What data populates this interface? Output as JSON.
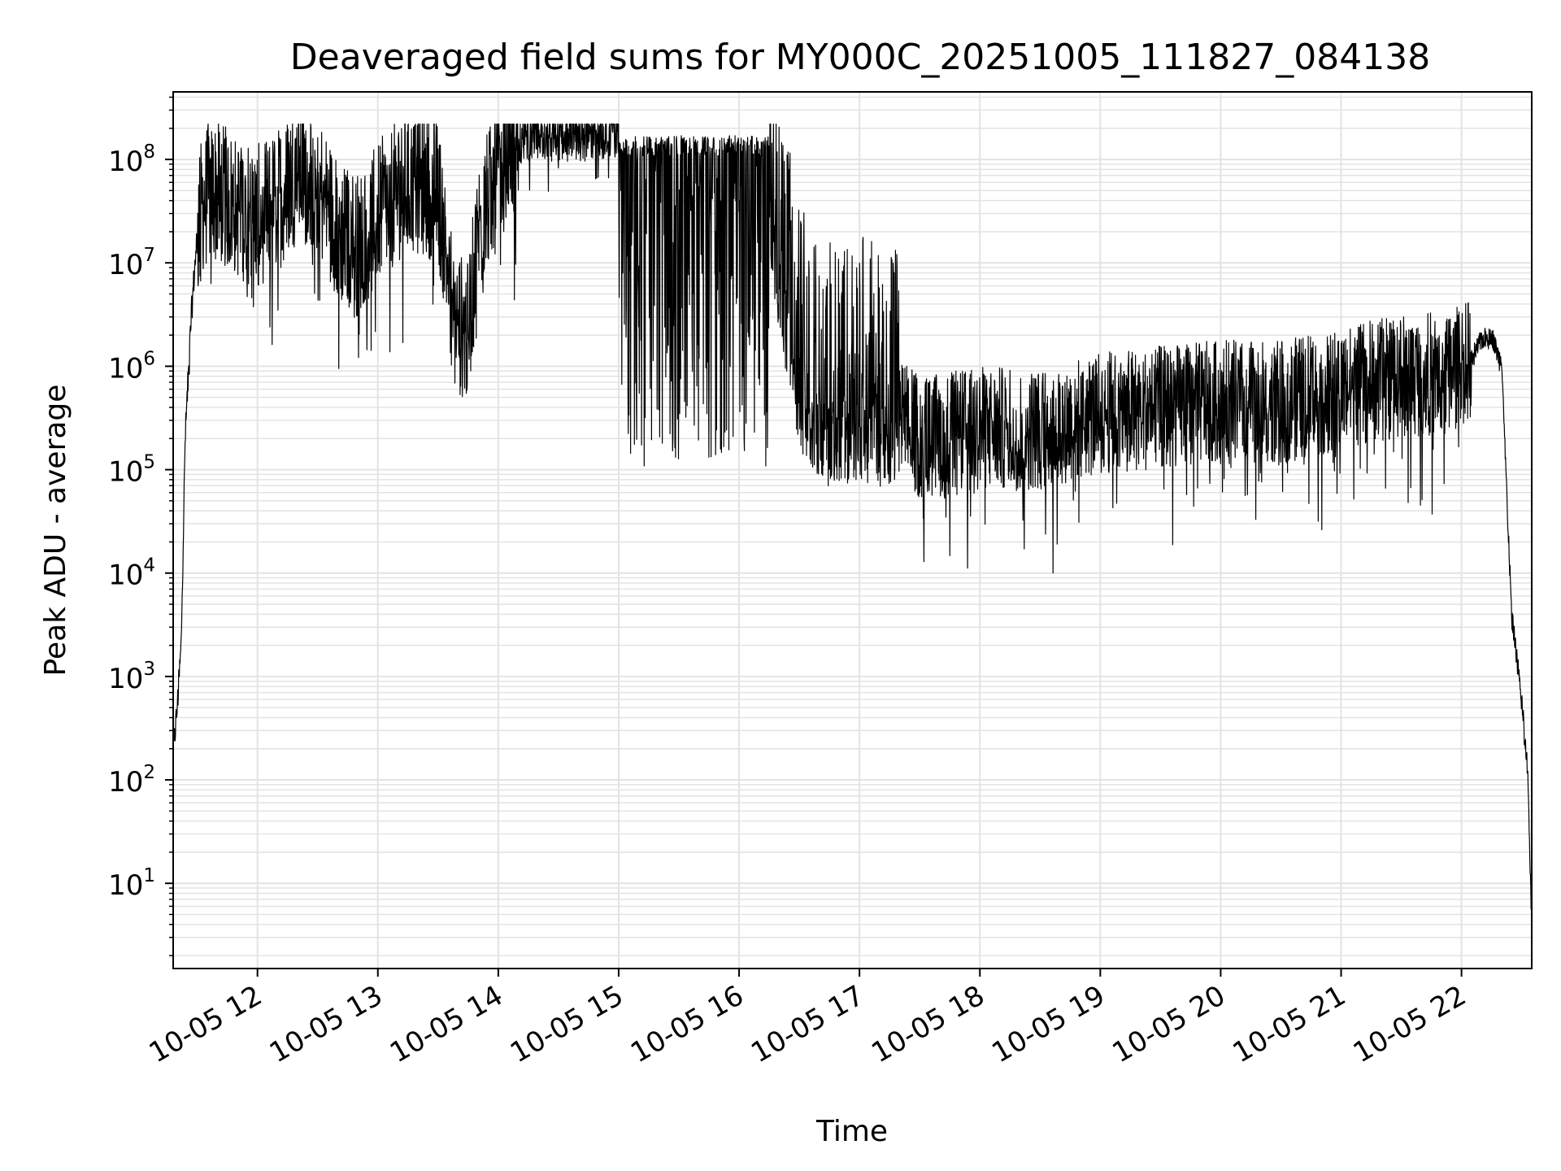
{
  "chart_data": {
    "type": "line",
    "title": "Deaveraged field sums for MY000C_20251005_111827_084138",
    "xlabel": "Time",
    "ylabel": "Peak ADU - average",
    "y_scale": "log",
    "ylim": [
      1.5,
      450000000
    ],
    "xlim": [
      "2025-10-05 11:18",
      "2025-10-05 22:35"
    ],
    "x_tick_labels": [
      "10-05 12",
      "10-05 13",
      "10-05 14",
      "10-05 15",
      "10-05 16",
      "10-05 17",
      "10-05 18",
      "10-05 19",
      "10-05 20",
      "10-05 21",
      "10-05 22"
    ],
    "x_tick_times": [
      "2025-10-05 12:00",
      "2025-10-05 13:00",
      "2025-10-05 14:00",
      "2025-10-05 15:00",
      "2025-10-05 16:00",
      "2025-10-05 17:00",
      "2025-10-05 18:00",
      "2025-10-05 19:00",
      "2025-10-05 20:00",
      "2025-10-05 21:00",
      "2025-10-05 22:00"
    ],
    "y_tick_values": [
      10,
      100,
      1000,
      10000,
      100000,
      1000000,
      10000000,
      100000000
    ],
    "y_tick_labels": [
      {
        "base": "10",
        "exp": "1"
      },
      {
        "base": "10",
        "exp": "2"
      },
      {
        "base": "10",
        "exp": "3"
      },
      {
        "base": "10",
        "exp": "4"
      },
      {
        "base": "10",
        "exp": "5"
      },
      {
        "base": "10",
        "exp": "6"
      },
      {
        "base": "10",
        "exp": "7"
      },
      {
        "base": "10",
        "exp": "8"
      }
    ],
    "grid": true,
    "line_color": "#000000",
    "grid_color": "#e3e3e3",
    "series": [
      {
        "x": [
          "2025-10-05 11:18",
          "2025-10-05 11:20",
          "2025-10-05 11:22",
          "2025-10-05 11:24",
          "2025-10-05 11:27",
          "2025-10-05 11:30",
          "2025-10-05 11:33",
          "2025-10-05 11:37",
          "2025-10-05 11:42",
          "2025-10-05 11:50",
          "2025-10-05 12:00",
          "2025-10-05 12:10",
          "2025-10-05 12:20",
          "2025-10-05 12:30",
          "2025-10-05 12:40",
          "2025-10-05 12:50",
          "2025-10-05 13:00",
          "2025-10-05 13:10",
          "2025-10-05 13:20",
          "2025-10-05 13:30",
          "2025-10-05 13:38",
          "2025-10-05 13:45",
          "2025-10-05 13:50",
          "2025-10-05 13:55",
          "2025-10-05 14:00",
          "2025-10-05 14:05",
          "2025-10-05 14:12",
          "2025-10-05 14:20",
          "2025-10-05 14:40",
          "2025-10-05 15:00",
          "2025-10-05 15:30",
          "2025-10-05 16:00",
          "2025-10-05 16:15",
          "2025-10-05 16:30",
          "2025-10-05 16:45",
          "2025-10-05 17:00",
          "2025-10-05 17:15",
          "2025-10-05 17:30",
          "2025-10-05 18:00",
          "2025-10-05 18:30",
          "2025-10-05 19:00",
          "2025-10-05 19:30",
          "2025-10-05 20:00",
          "2025-10-05 20:30",
          "2025-10-05 21:00",
          "2025-10-05 21:30",
          "2025-10-05 21:55",
          "2025-10-05 22:05",
          "2025-10-05 22:10",
          "2025-10-05 22:15",
          "2025-10-05 22:20",
          "2025-10-05 22:25",
          "2025-10-05 22:30",
          "2025-10-05 22:33",
          "2025-10-05 22:35"
        ],
        "values": [
          180,
          500,
          2000,
          200000,
          3000000,
          20000000,
          40000000,
          50000000,
          45000000,
          35000000,
          28000000,
          40000000,
          80000000,
          60000000,
          20000000,
          15000000,
          30000000,
          50000000,
          60000000,
          50000000,
          3000000,
          2000000,
          20000000,
          40000000,
          70000000,
          130000000,
          165000000,
          170000000,
          170000000,
          175000000,
          175000000,
          175000000,
          50000000,
          1000000,
          400000,
          500000,
          400000,
          200000,
          250000,
          250000,
          350000,
          400000,
          450000,
          450000,
          600000,
          800000,
          900000,
          1200000,
          1800000,
          2000000,
          1000000,
          4000,
          600,
          120,
          4
        ]
      }
    ]
  }
}
